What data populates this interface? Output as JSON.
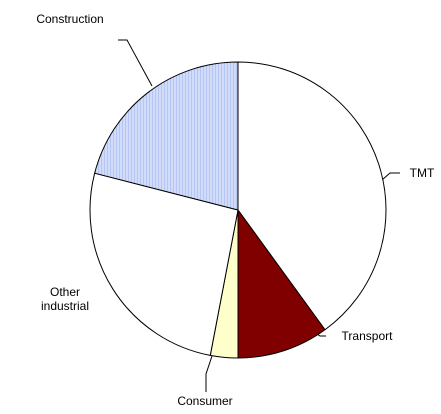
{
  "chart_data": {
    "type": "pie",
    "categories": [
      "TMT",
      "Transport",
      "Consumer",
      "Other industrial",
      "Construction"
    ],
    "values": [
      40,
      10,
      3,
      26,
      21
    ],
    "colors": [
      "#ffffff",
      "#800000",
      "#ffffcc",
      "#ffffff",
      "#b4c6f4"
    ]
  }
}
